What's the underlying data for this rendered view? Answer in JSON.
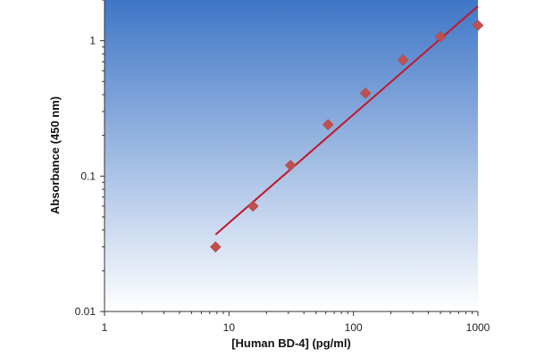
{
  "chart_data": {
    "type": "scatter",
    "x_scale": "log",
    "y_scale": "log",
    "xlim": [
      1,
      1000
    ],
    "ylim": [
      0.01,
      2
    ],
    "x_ticks": [
      {
        "value": 1,
        "label": "1"
      },
      {
        "value": 10,
        "label": "10"
      },
      {
        "value": 100,
        "label": "100"
      },
      {
        "value": 1000,
        "label": "1000"
      }
    ],
    "y_ticks": [
      {
        "value": 0.01,
        "label": "0.01"
      },
      {
        "value": 0.1,
        "label": "0.1"
      },
      {
        "value": 1,
        "label": "1"
      }
    ],
    "xlabel": "[Human BD-4] (pg/ml)",
    "ylabel": "Absorbance (450 nm)",
    "grid": false,
    "legend": "none",
    "series": [
      {
        "kind": "points",
        "marker": "diamond",
        "color": "#c0504d",
        "x": [
          7.8,
          15.6,
          31.25,
          62.5,
          125,
          250,
          500,
          1000
        ],
        "y": [
          0.03,
          0.06,
          0.12,
          0.24,
          0.41,
          0.72,
          1.07,
          1.3
        ]
      },
      {
        "kind": "fit-line",
        "color": "#c0192b",
        "x": [
          7.8,
          1000
        ],
        "y": [
          0.037,
          1.8
        ]
      }
    ],
    "plot_background": {
      "top": "#3f76c7",
      "bottom": "#ffffff"
    }
  }
}
